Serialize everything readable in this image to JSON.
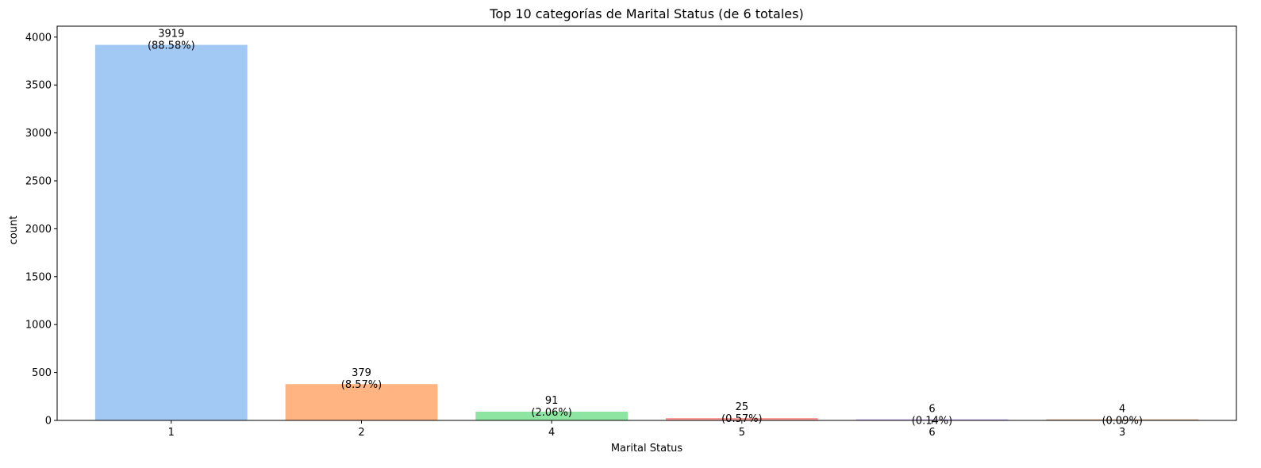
{
  "chart_data": {
    "type": "bar",
    "title": "Top 10 categorías de Marital Status (de 6 totales)",
    "xlabel": "Marital Status",
    "ylabel": "count",
    "categories": [
      "1",
      "2",
      "4",
      "5",
      "6",
      "3"
    ],
    "values": [
      3919,
      379,
      91,
      25,
      6,
      4
    ],
    "value_labels": [
      "3919",
      "379",
      "91",
      "25",
      "6",
      "4"
    ],
    "percent_labels": [
      "(88.58%)",
      "(8.57%)",
      "(2.06%)",
      "(0.57%)",
      "(0.14%)",
      "(0.09%)"
    ],
    "colors": [
      "#a1c9f4",
      "#ffb482",
      "#8de5a1",
      "#ff9f9b",
      "#d0bbff",
      "#debb9b"
    ],
    "ylim": [
      0,
      4114
    ],
    "yticks": [
      0,
      500,
      1000,
      1500,
      2000,
      2500,
      3000,
      3500,
      4000
    ],
    "grid": false,
    "legend": "none"
  }
}
